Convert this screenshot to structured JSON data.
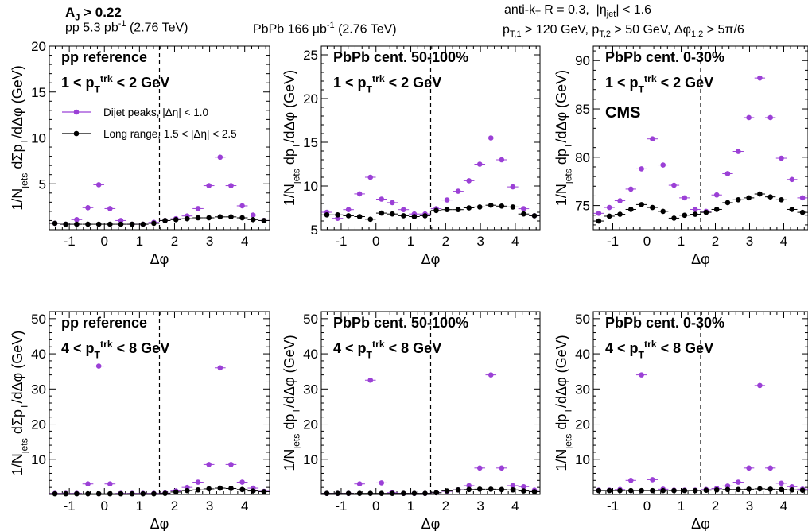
{
  "header": {
    "aj": "A_J > 0.22",
    "pp_lumi": "pp 5.3 pb^-1 (2.76 TeV)",
    "pbpb_lumi": "PbPb 166 μb^-1 (2.76 TeV)",
    "jet_def": "anti-k_T R = 0.3, |η_jet| < 1.6",
    "cuts": "p_T,1 > 120 GeV, p_T,2 > 50 GeV, Δφ_1,2 > 5π/6"
  },
  "colors": {
    "dijet": "#9b40d6",
    "long_range": "#000000"
  },
  "chart_data": [
    {
      "type": "scatter",
      "panel": "top-left",
      "title": "pp reference",
      "subtitle": "1 < p_T^trk < 2 GeV",
      "xlabel": "Δφ",
      "ylabel": "1/N_jets dΣp_T/dΔφ (GeV)",
      "xlim": [
        -1.57,
        4.71
      ],
      "ylim": [
        0,
        20
      ],
      "xticks": [
        -1,
        0,
        1,
        2,
        3,
        4
      ],
      "yticks": [
        5,
        10,
        15,
        20
      ],
      "legend": {
        "placement": "top-left",
        "entries": [
          "Dijet peaks, |Δη| < 1.0",
          "Long range, 1.5 < |Δη| < 2.5"
        ]
      },
      "vline": 1.57,
      "x": [
        -1.41,
        -1.1,
        -0.79,
        -0.47,
        -0.16,
        0.16,
        0.47,
        0.79,
        1.1,
        1.41,
        1.73,
        2.04,
        2.36,
        2.67,
        2.98,
        3.3,
        3.61,
        3.93,
        4.24,
        4.55
      ],
      "series": [
        {
          "name": "Dijet peaks, |Δη| < 1.0",
          "values": [
            0.7,
            0.6,
            1.1,
            2.4,
            4.9,
            2.3,
            1.0,
            0.6,
            0.6,
            0.8,
            1.0,
            1.2,
            1.5,
            2.3,
            4.8,
            7.9,
            4.8,
            2.6,
            1.6,
            1.0
          ]
        },
        {
          "name": "Long range, 1.5 < |Δη| < 2.5",
          "values": [
            0.7,
            0.6,
            0.6,
            0.6,
            0.6,
            0.6,
            0.6,
            0.6,
            0.6,
            0.7,
            1.0,
            1.1,
            1.2,
            1.3,
            1.3,
            1.4,
            1.4,
            1.3,
            1.1,
            1.0
          ]
        }
      ]
    },
    {
      "type": "scatter",
      "panel": "top-middle",
      "title": "PbPb cent. 50-100%",
      "subtitle": "1 < p_T^trk < 2 GeV",
      "xlabel": "Δφ",
      "ylabel": "1/N_jets dp_T/dΔφ (GeV)",
      "xlim": [
        -1.57,
        4.71
      ],
      "ylim": [
        5,
        26
      ],
      "xticks": [
        -1,
        0,
        1,
        2,
        3,
        4
      ],
      "yticks": [
        5,
        10,
        15,
        20,
        25
      ],
      "vline": 1.57,
      "x": [
        -1.41,
        -1.1,
        -0.79,
        -0.47,
        -0.16,
        0.16,
        0.47,
        0.79,
        1.1,
        1.41,
        1.73,
        2.04,
        2.36,
        2.67,
        2.98,
        3.3,
        3.61,
        3.93,
        4.24,
        4.55
      ],
      "series": [
        {
          "name": "Dijet peaks, |Δη| < 1.0",
          "values": [
            7.0,
            6.3,
            7.3,
            9.1,
            11.0,
            8.5,
            8.1,
            7.3,
            6.8,
            6.8,
            7.4,
            8.4,
            9.4,
            10.6,
            12.5,
            15.5,
            13.0,
            9.9,
            7.4,
            6.6
          ]
        },
        {
          "name": "Long range, 1.5 < |Δη| < 2.5",
          "values": [
            6.7,
            6.7,
            6.6,
            6.5,
            6.2,
            6.9,
            6.8,
            6.6,
            6.5,
            6.6,
            7.2,
            7.3,
            7.3,
            7.5,
            7.6,
            7.8,
            7.7,
            7.6,
            6.8,
            6.6
          ]
        }
      ]
    },
    {
      "type": "scatter",
      "panel": "top-right",
      "title": "PbPb cent. 0-30%",
      "subtitle": "1 < p_T^trk < 2 GeV",
      "label": "CMS",
      "xlabel": "Δφ",
      "ylabel": "1/N_jets dp_T/dΔφ (GeV)",
      "xlim": [
        -1.57,
        4.71
      ],
      "ylim": [
        72.5,
        91.5
      ],
      "xticks": [
        -1,
        0,
        1,
        2,
        3,
        4
      ],
      "yticks": [
        75,
        80,
        85,
        90
      ],
      "vline": 1.57,
      "x": [
        -1.41,
        -1.1,
        -0.79,
        -0.47,
        -0.16,
        0.16,
        0.47,
        0.79,
        1.1,
        1.41,
        1.73,
        2.04,
        2.36,
        2.67,
        2.98,
        3.3,
        3.61,
        3.93,
        4.24,
        4.55
      ],
      "series": [
        {
          "name": "Dijet peaks, |Δη| < 1.0",
          "values": [
            74.2,
            74.8,
            75.5,
            76.7,
            78.8,
            81.9,
            79.2,
            77.1,
            75.8,
            74.6,
            74.4,
            76.1,
            78.3,
            80.6,
            84.1,
            88.2,
            84.1,
            79.9,
            77.7,
            75.8
          ]
        },
        {
          "name": "Long range, 1.5 < |Δη| < 2.5",
          "values": [
            73.4,
            73.9,
            74.1,
            74.6,
            75.1,
            74.8,
            74.4,
            73.7,
            74.0,
            74.1,
            74.3,
            74.6,
            75.3,
            75.6,
            75.8,
            76.2,
            75.9,
            75.6,
            74.6,
            74.3
          ]
        }
      ]
    },
    {
      "type": "scatter",
      "panel": "bottom-left",
      "title": "pp reference",
      "subtitle": "4 < p_T^trk < 8 GeV",
      "xlabel": "Δφ",
      "ylabel": "1/N_jets dΣp_T/dΔφ (GeV)",
      "xlim": [
        -1.57,
        4.71
      ],
      "ylim": [
        0,
        52
      ],
      "xticks": [
        -1,
        0,
        1,
        2,
        3,
        4
      ],
      "yticks": [
        10,
        20,
        30,
        40,
        50
      ],
      "vline": 1.57,
      "x": [
        -1.41,
        -1.1,
        -0.79,
        -0.47,
        -0.16,
        0.16,
        0.47,
        0.79,
        1.1,
        1.41,
        1.73,
        2.04,
        2.36,
        2.67,
        2.98,
        3.3,
        3.61,
        3.93,
        4.24,
        4.55
      ],
      "series": [
        {
          "name": "Dijet peaks, |Δη| < 1.0",
          "values": [
            0.3,
            0.3,
            0.3,
            3.0,
            36.5,
            3.0,
            0.3,
            0.3,
            0.3,
            0.3,
            0.4,
            1.0,
            2.0,
            3.5,
            8.5,
            36.0,
            8.5,
            3.5,
            1.8,
            0.9
          ]
        },
        {
          "name": "Long range, 1.5 < |Δη| < 2.5",
          "values": [
            0.2,
            0.2,
            0.2,
            0.2,
            0.2,
            0.2,
            0.2,
            0.2,
            0.2,
            0.2,
            0.3,
            0.7,
            1.1,
            1.3,
            1.6,
            1.8,
            1.7,
            1.4,
            1.0,
            0.8
          ]
        }
      ]
    },
    {
      "type": "scatter",
      "panel": "bottom-middle",
      "title": "PbPb cent. 50-100%",
      "subtitle": "4 < p_T^trk < 8 GeV",
      "xlabel": "Δφ",
      "ylabel": "1/N_jets dp_T/dΔφ (GeV)",
      "xlim": [
        -1.57,
        4.71
      ],
      "ylim": [
        0,
        52
      ],
      "xticks": [
        -1,
        0,
        1,
        2,
        3,
        4
      ],
      "yticks": [
        10,
        20,
        30,
        40,
        50
      ],
      "vline": 1.57,
      "x": [
        -1.41,
        -1.1,
        -0.79,
        -0.47,
        -0.16,
        0.16,
        0.47,
        0.79,
        1.1,
        1.41,
        1.73,
        2.04,
        2.36,
        2.67,
        2.98,
        3.3,
        3.61,
        3.93,
        4.24,
        4.55
      ],
      "series": [
        {
          "name": "Dijet peaks, |Δη| < 1.0",
          "values": [
            0.3,
            0.3,
            0.3,
            3.0,
            32.5,
            3.3,
            0.5,
            0.3,
            0.3,
            0.3,
            0.5,
            0.9,
            1.3,
            2.5,
            7.5,
            34.0,
            7.5,
            2.5,
            2.2,
            1.2
          ]
        },
        {
          "name": "Long range, 1.5 < |Δη| < 2.5",
          "values": [
            0.3,
            0.3,
            0.3,
            0.3,
            0.3,
            0.3,
            0.3,
            0.3,
            0.3,
            0.3,
            0.5,
            1.0,
            1.3,
            1.4,
            1.5,
            1.5,
            1.4,
            1.3,
            1.0,
            0.8
          ]
        }
      ]
    },
    {
      "type": "scatter",
      "panel": "bottom-right",
      "title": "PbPb cent. 0-30%",
      "subtitle": "4 < p_T^trk < 8 GeV",
      "xlabel": "Δφ",
      "ylabel": "1/N_jets dp_T/dΔφ (GeV)",
      "xlim": [
        -1.57,
        4.71
      ],
      "ylim": [
        0,
        52
      ],
      "xticks": [
        -1,
        0,
        1,
        2,
        3,
        4
      ],
      "yticks": [
        10,
        20,
        30,
        40,
        50
      ],
      "vline": 1.57,
      "x": [
        -1.41,
        -1.1,
        -0.79,
        -0.47,
        -0.16,
        0.16,
        0.47,
        0.79,
        1.1,
        1.41,
        1.73,
        2.04,
        2.36,
        2.67,
        2.98,
        3.3,
        3.61,
        3.93,
        4.24,
        4.55
      ],
      "series": [
        {
          "name": "Dijet peaks, |Δη| < 1.0",
          "values": [
            1.2,
            1.2,
            1.4,
            4.0,
            34.0,
            4.2,
            1.5,
            1.2,
            1.2,
            1.2,
            1.4,
            1.7,
            2.4,
            3.5,
            7.5,
            31.0,
            7.5,
            3.2,
            2.2,
            1.5
          ]
        },
        {
          "name": "Long range, 1.5 < |Δη| < 2.5",
          "values": [
            1.1,
            1.1,
            1.1,
            1.1,
            1.1,
            1.1,
            1.1,
            1.1,
            1.1,
            1.1,
            1.2,
            1.3,
            1.4,
            1.4,
            1.5,
            1.6,
            1.5,
            1.4,
            1.3,
            1.2
          ]
        }
      ]
    }
  ]
}
